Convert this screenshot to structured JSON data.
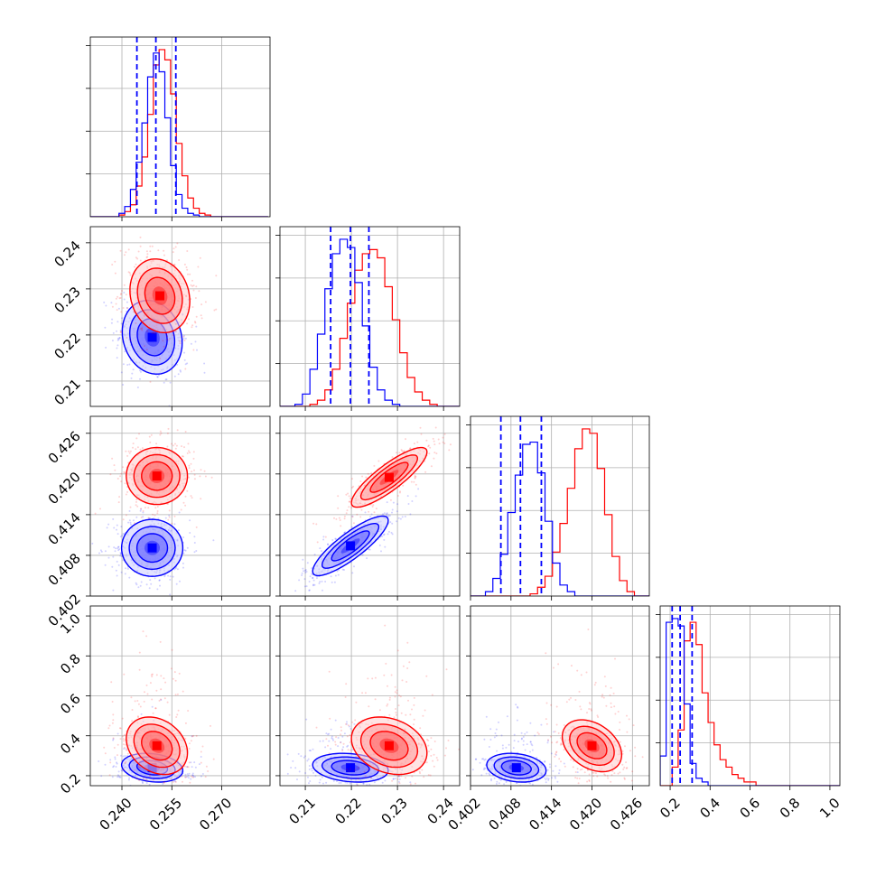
{
  "chart_data": {
    "type": "corner",
    "grid": true,
    "series": [
      {
        "color": "#ff0000"
      },
      {
        "color": "#0000ff"
      }
    ],
    "params": [
      {
        "ticks": [
          0.24,
          0.255,
          0.27
        ],
        "tick_labels": [
          "0.240",
          "0.255",
          "0.270"
        ],
        "range": [
          0.2305,
          0.2845
        ]
      },
      {
        "ticks": [
          0.21,
          0.22,
          0.23,
          0.24
        ],
        "tick_labels": [
          "0.21",
          "0.22",
          "0.23",
          "0.24"
        ],
        "range": [
          0.2045,
          0.2435
        ]
      },
      {
        "ticks": [
          0.402,
          0.408,
          0.414,
          0.42,
          0.426
        ],
        "tick_labels": [
          "0.402",
          "0.408",
          "0.414",
          "0.420",
          "0.426"
        ],
        "range": [
          0.402,
          0.4285
        ]
      },
      {
        "ticks": [
          0.2,
          0.4,
          0.6,
          0.8,
          1.0
        ],
        "tick_labels": [
          "0.2",
          "0.4",
          "0.6",
          "0.8",
          "1.0"
        ],
        "range": [
          0.15,
          1.05
        ]
      }
    ],
    "quantile_lines": {
      "color": "#0000ff",
      "values": [
        [
          0.2445,
          0.2502,
          0.2562
        ],
        [
          0.2155,
          0.2198,
          0.2238
        ],
        [
          0.4065,
          0.4094,
          0.4125
        ],
        [
          0.21,
          0.25,
          0.31
        ]
      ]
    },
    "histograms": [
      {
        "bins": [
          0.2305,
          0.2839,
          31
        ],
        "red": [
          0,
          0,
          0,
          0,
          0,
          1,
          3,
          7,
          18,
          35,
          60,
          89,
          98,
          92,
          72,
          43,
          24,
          11,
          5,
          2,
          1,
          0,
          0,
          0,
          0,
          0,
          0,
          0,
          0,
          0,
          0
        ],
        "blue": [
          0,
          0,
          0,
          0,
          0,
          2,
          6,
          16,
          32,
          55,
          82,
          96,
          85,
          58,
          30,
          13,
          5,
          2,
          1,
          0,
          0,
          0,
          0,
          0,
          0,
          0,
          0,
          0,
          0,
          0,
          0
        ]
      },
      {
        "bins": [
          0.2045,
          0.2435,
          24
        ],
        "red": [
          0,
          0,
          0,
          0,
          1,
          3,
          8,
          18,
          33,
          50,
          66,
          74,
          76,
          72,
          58,
          42,
          26,
          14,
          7,
          3,
          1,
          0,
          0,
          0
        ],
        "blue": [
          0,
          0,
          1,
          6,
          18,
          35,
          57,
          74,
          81,
          77,
          60,
          39,
          19,
          8,
          3,
          1,
          0,
          0,
          0,
          0,
          0,
          0,
          0,
          0
        ]
      },
      {
        "bins": [
          0.402,
          0.4285,
          24
        ],
        "red": [
          0,
          0,
          0,
          0,
          0,
          0,
          0,
          0,
          1,
          4,
          9,
          20,
          33,
          49,
          67,
          76,
          74,
          58,
          37,
          18,
          7,
          2,
          0,
          0
        ],
        "blue": [
          0,
          0,
          2,
          8,
          19,
          38,
          55,
          69,
          70,
          56,
          34,
          15,
          5,
          2,
          0,
          0,
          0,
          0,
          0,
          0,
          0,
          0,
          0,
          0
        ]
      },
      {
        "bins": [
          0.15,
          1.05,
          30
        ],
        "red": [
          0,
          0,
          5,
          15,
          39,
          44,
          38,
          25,
          17,
          11,
          7,
          5,
          3,
          2,
          1,
          1,
          0,
          0,
          0,
          0,
          0,
          0,
          0,
          0,
          0,
          0,
          0,
          0,
          0,
          0
        ],
        "blue": [
          8,
          44,
          45,
          43,
          22,
          6,
          2,
          1,
          0,
          0,
          0,
          0,
          0,
          0,
          0,
          0,
          0,
          0,
          0,
          0,
          0,
          0,
          0,
          0,
          0,
          0,
          0,
          0,
          0,
          0,
          0
        ]
      }
    ],
    "joint": [
      {
        "i": 1,
        "j": 0,
        "red": {
          "center": [
            0.2514,
            0.2285
          ],
          "sd": [
            0.0045,
            0.004
          ],
          "rho": -0.15
        },
        "blue": {
          "center": [
            0.2491,
            0.2195
          ],
          "sd": [
            0.0045,
            0.004
          ],
          "rho": -0.15
        }
      },
      {
        "i": 2,
        "j": 0,
        "red": {
          "center": [
            0.2505,
            0.4197
          ],
          "sd": [
            0.0046,
            0.0021
          ],
          "rho": 0.0
        },
        "blue": {
          "center": [
            0.2491,
            0.4091
          ],
          "sd": [
            0.0046,
            0.0021
          ],
          "rho": 0.0
        }
      },
      {
        "i": 2,
        "j": 1,
        "red": {
          "center": [
            0.2282,
            0.4195
          ],
          "sd": [
            0.0041,
            0.0022
          ],
          "rho": 0.85
        },
        "blue": {
          "center": [
            0.2198,
            0.4094
          ],
          "sd": [
            0.0041,
            0.0022
          ],
          "rho": 0.85
        }
      },
      {
        "i": 3,
        "j": 0,
        "red": {
          "center": [
            0.2505,
            0.35
          ],
          "sd": [
            0.0046,
            0.072
          ],
          "rho": -0.25
        },
        "blue": {
          "center": [
            0.2491,
            0.24
          ],
          "sd": [
            0.0046,
            0.036
          ],
          "rho": -0.2
        }
      },
      {
        "i": 3,
        "j": 1,
        "red": {
          "center": [
            0.2282,
            0.35
          ],
          "sd": [
            0.0041,
            0.072
          ],
          "rho": -0.25
        },
        "blue": {
          "center": [
            0.2198,
            0.24
          ],
          "sd": [
            0.0041,
            0.036
          ],
          "rho": -0.2
        }
      },
      {
        "i": 3,
        "j": 2,
        "red": {
          "center": [
            0.42,
            0.35
          ],
          "sd": [
            0.0022,
            0.065
          ],
          "rho": -0.35
        },
        "blue": {
          "center": [
            0.4088,
            0.24
          ],
          "sd": [
            0.0022,
            0.036
          ],
          "rho": -0.2
        }
      }
    ]
  }
}
